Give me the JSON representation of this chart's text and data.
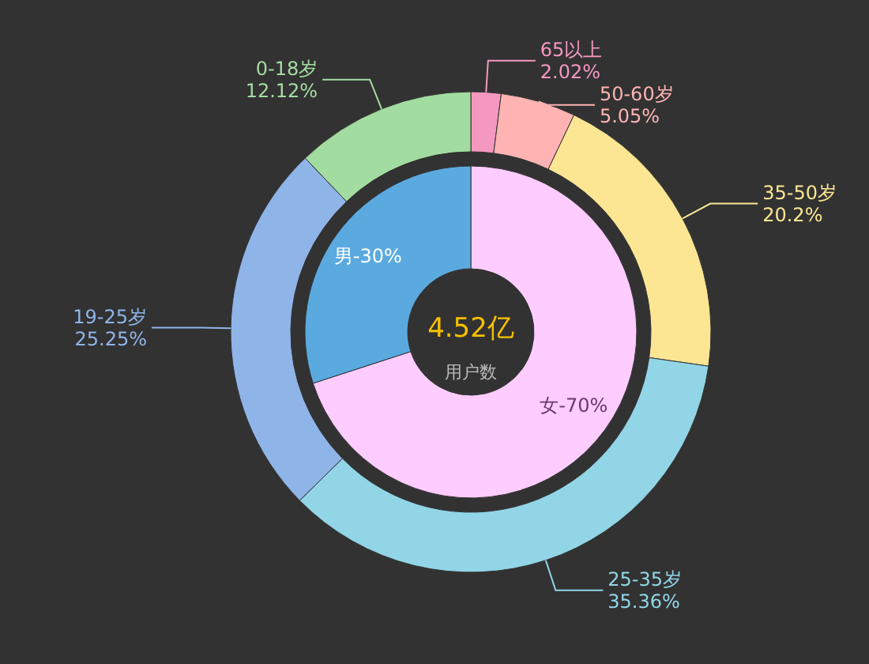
{
  "chart_data": [
    {
      "type": "donut",
      "title": "4.52亿",
      "subtitle": "用户数",
      "categories": [
        "女-70%",
        "男-30%"
      ],
      "values": [
        70,
        30
      ],
      "colors": [
        "#ffccff",
        "#5aaae0"
      ]
    },
    {
      "type": "donut",
      "categories": [
        "65以上",
        "50-60岁",
        "35-50岁",
        "25-35岁",
        "19-25岁",
        "0-18岁"
      ],
      "values": [
        2.02,
        5.05,
        20.2,
        35.36,
        25.25,
        12.12
      ],
      "value_labels": [
        "2.02%",
        "5.05%",
        "20.2%",
        "35.36%",
        "25.25%",
        "12.12%"
      ],
      "colors": [
        "#f598c0",
        "#ffb3b3",
        "#fce694",
        "#91d5e6",
        "#8fb4e8",
        "#a3dca0"
      ]
    }
  ]
}
